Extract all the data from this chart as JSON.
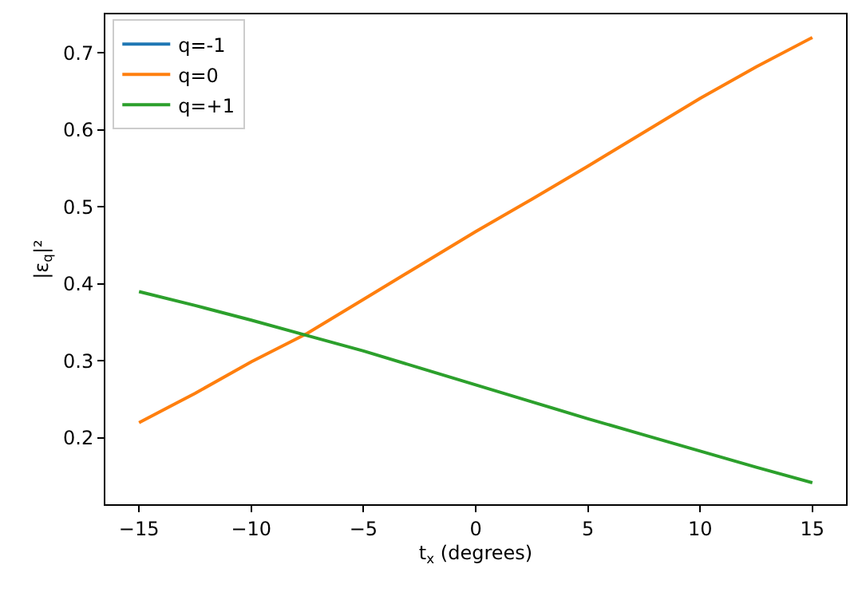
{
  "chart_data": {
    "type": "line",
    "xlabel": "t$_{x}$ (degrees)",
    "ylabel": "|ε$_{q}$|²",
    "x": [
      -15,
      -12.5,
      -10,
      -7.5,
      -5,
      -2.5,
      0,
      2.5,
      5,
      7.5,
      10,
      12.5,
      15
    ],
    "series": [
      {
        "name": "q=-1",
        "color": "#1f77b4",
        "values": [
          null,
          null,
          null,
          null,
          null,
          null,
          null,
          null,
          null,
          null,
          null,
          null,
          null
        ]
      },
      {
        "name": "q=0",
        "color": "#ff7f0e",
        "values": [
          0.22,
          0.258,
          0.299,
          0.336,
          0.38,
          0.424,
          0.468,
          0.51,
          0.553,
          0.597,
          0.641,
          0.682,
          0.72
        ]
      },
      {
        "name": "q=+1",
        "color": "#2ca02c",
        "values": [
          0.39,
          0.372,
          0.353,
          0.333,
          0.313,
          0.291,
          0.269,
          0.247,
          0.225,
          0.204,
          0.183,
          0.162,
          0.142
        ]
      }
    ],
    "xlim": [
      -16.5,
      16.5
    ],
    "xticks": [
      -15,
      -10,
      -5,
      0,
      5,
      10,
      15
    ],
    "ylim": [
      0.114,
      0.75
    ],
    "yticks": [
      0.2,
      0.3,
      0.4,
      0.5,
      0.6,
      0.7
    ],
    "legend": "top left",
    "marker": "none",
    "line_style": "solid"
  }
}
